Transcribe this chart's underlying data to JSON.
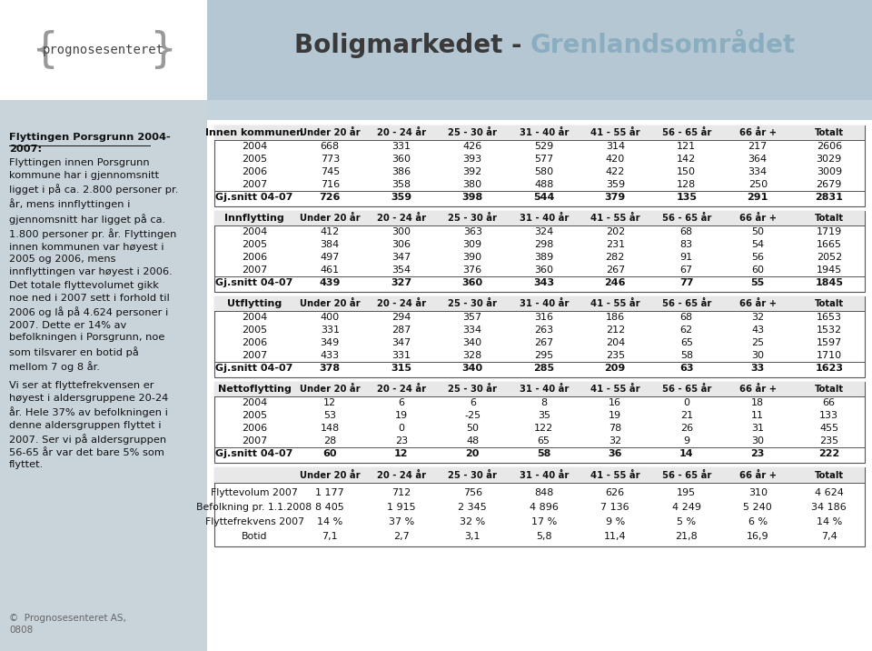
{
  "col_headers": [
    "Under 20 år",
    "20 - 24 år",
    "25 - 30 år",
    "31 - 40 år",
    "41 - 55 år",
    "56 - 65 år",
    "66 år +",
    "Totalt"
  ],
  "tables": [
    {
      "title": "Innen kommunen",
      "years": [
        "2004",
        "2005",
        "2006",
        "2007"
      ],
      "data": [
        [
          668,
          331,
          426,
          529,
          314,
          121,
          217,
          2606
        ],
        [
          773,
          360,
          393,
          577,
          420,
          142,
          364,
          3029
        ],
        [
          745,
          386,
          392,
          580,
          422,
          150,
          334,
          3009
        ],
        [
          716,
          358,
          380,
          488,
          359,
          128,
          250,
          2679
        ]
      ],
      "avg_label": "Gj.snitt 04-07",
      "avg": [
        726,
        359,
        398,
        544,
        379,
        135,
        291,
        2831
      ]
    },
    {
      "title": "Innflytting",
      "years": [
        "2004",
        "2005",
        "2006",
        "2007"
      ],
      "data": [
        [
          412,
          300,
          363,
          324,
          202,
          68,
          50,
          1719
        ],
        [
          384,
          306,
          309,
          298,
          231,
          83,
          54,
          1665
        ],
        [
          497,
          347,
          390,
          389,
          282,
          91,
          56,
          2052
        ],
        [
          461,
          354,
          376,
          360,
          267,
          67,
          60,
          1945
        ]
      ],
      "avg_label": "Gj.snitt 04-07",
      "avg": [
        439,
        327,
        360,
        343,
        246,
        77,
        55,
        1845
      ]
    },
    {
      "title": "Utflytting",
      "years": [
        "2004",
        "2005",
        "2006",
        "2007"
      ],
      "data": [
        [
          400,
          294,
          357,
          316,
          186,
          68,
          32,
          1653
        ],
        [
          331,
          287,
          334,
          263,
          212,
          62,
          43,
          1532
        ],
        [
          349,
          347,
          340,
          267,
          204,
          65,
          25,
          1597
        ],
        [
          433,
          331,
          328,
          295,
          235,
          58,
          30,
          1710
        ]
      ],
      "avg_label": "Gj.snitt 04-07",
      "avg": [
        378,
        315,
        340,
        285,
        209,
        63,
        33,
        1623
      ]
    },
    {
      "title": "Nettoflytting",
      "years": [
        "2004",
        "2005",
        "2006",
        "2007"
      ],
      "data": [
        [
          12,
          6,
          6,
          8,
          16,
          0,
          18,
          66
        ],
        [
          53,
          19,
          -25,
          35,
          19,
          21,
          11,
          133
        ],
        [
          148,
          0,
          50,
          122,
          78,
          26,
          31,
          455
        ],
        [
          28,
          23,
          48,
          65,
          32,
          9,
          30,
          235
        ]
      ],
      "avg_label": "Gj.snitt 04-07",
      "avg": [
        60,
        12,
        20,
        58,
        36,
        14,
        23,
        222
      ]
    }
  ],
  "bottom_table": {
    "rows": [
      {
        "label": "Flyttevolum 2007",
        "values": [
          "1 177",
          "712",
          "756",
          "848",
          "626",
          "195",
          "310",
          "4 624"
        ]
      },
      {
        "label": "Befolkning pr. 1.1.2008",
        "values": [
          "8 405",
          "1 915",
          "2 345",
          "4 896",
          "7 136",
          "4 249",
          "5 240",
          "34 186"
        ]
      },
      {
        "label": "Flyttefrekvens 2007",
        "values": [
          "14 %",
          "37 %",
          "32 %",
          "17 %",
          "9 %",
          "5 %",
          "6 %",
          "14 %"
        ]
      },
      {
        "label": "Botid",
        "values": [
          "7,1",
          "2,7",
          "3,1",
          "5,8",
          "11,4",
          "21,8",
          "16,9",
          "7,4"
        ]
      }
    ]
  },
  "header_bg": "#b5c7d3",
  "header_stripe_bg": "#c5d3dc",
  "left_panel_bg": "#c8d3da",
  "logo_bg": "#ffffff",
  "table_header_bg": "#e8e8e8",
  "border_color": "#555555",
  "text_color": "#111111",
  "title_color1": "#3a3a3a",
  "title_color2": "#8aaec0",
  "subtitle_color": "#c5d3dc",
  "footer_color": "#666666"
}
